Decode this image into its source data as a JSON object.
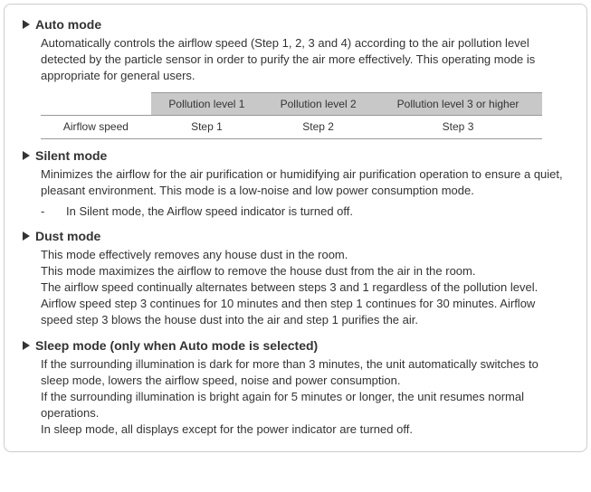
{
  "sections": {
    "auto": {
      "title": "Auto mode",
      "desc": "Automatically controls the airflow speed (Step 1, 2, 3 and 4) according to the air pollution level detected by the particle sensor in order to purify the air more effectively. This operating mode is appropriate for general users."
    },
    "table": {
      "headers": [
        "",
        "Pollution level 1",
        "Pollution level 2",
        "Pollution level 3 or higher"
      ],
      "row_label": "Airflow speed",
      "row_values": [
        "Step 1",
        "Step 2",
        "Step 3"
      ]
    },
    "silent": {
      "title": "Silent mode",
      "desc": "Minimizes the airflow for the air purification or humidifying air purification operation to ensure a quiet, pleasant environment. This mode is a low-noise and low power consumption mode.",
      "note": "In Silent mode, the Airflow speed indicator is turned off."
    },
    "dust": {
      "title": "Dust mode",
      "l1": "This mode effectively removes any house dust in the room.",
      "l2": "This mode maximizes the airflow to remove the house dust from the air in the room.",
      "l3": "The airflow speed continually alternates between steps 3 and 1 regardless of the pollution level. Airflow speed step 3 continues for 10 minutes and then step 1 continues for 30 minutes. Airflow speed step 3 blows the house dust into the air and step 1 purifies the air."
    },
    "sleep": {
      "title": "Sleep mode (only when Auto mode is selected)",
      "l1": "If the surrounding illumination is dark for more than 3 minutes, the unit automatically switches to sleep mode, lowers the airflow speed, noise and power consumption.",
      "l2": "If the surrounding illumination is bright again for 5 minutes or longer, the unit resumes normal operations.",
      "l3": "In sleep mode, all displays except for the power indicator are turned off."
    }
  }
}
